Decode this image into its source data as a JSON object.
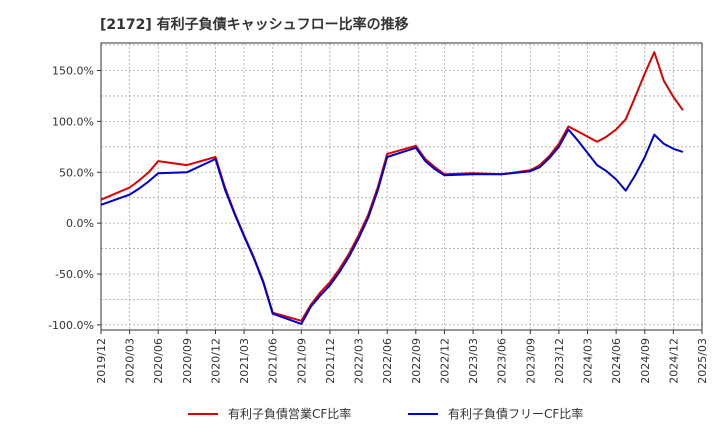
{
  "chart_data": {
    "type": "line",
    "title": "[2172]  有利子負債キャッシュフロー比率の推移",
    "xlabel": "",
    "ylabel": "",
    "x_ticks": [
      "2019/12",
      "2020/03",
      "2020/06",
      "2020/09",
      "2020/12",
      "2021/03",
      "2021/06",
      "2021/09",
      "2021/12",
      "2022/03",
      "2022/06",
      "2022/09",
      "2022/12",
      "2023/03",
      "2023/06",
      "2023/09",
      "2023/12",
      "2024/03",
      "2024/06",
      "2024/09",
      "2024/12",
      "2025/03"
    ],
    "y_ticks": [
      150,
      100,
      50,
      0,
      -50,
      -100
    ],
    "y_tick_labels": [
      "150.0%",
      "100.0%",
      "50.0%",
      "0.0%",
      "-50.0%",
      "-100.0%"
    ],
    "ylim": [
      -105,
      177
    ],
    "grid": true,
    "legend_position": "bottom",
    "series": [
      {
        "name": "有利子負債営業CF比率",
        "color": "#dd0000",
        "points": [
          [
            "2019/12",
            23
          ],
          [
            "2020/03",
            35
          ],
          [
            "2020/04",
            42
          ],
          [
            "2020/05",
            50
          ],
          [
            "2020/06",
            61
          ],
          [
            "2020/09",
            57
          ],
          [
            "2020/12",
            65
          ],
          [
            "2021/01",
            35
          ],
          [
            "2021/02",
            10
          ],
          [
            "2021/03",
            -12
          ],
          [
            "2021/04",
            -33
          ],
          [
            "2021/05",
            -57
          ],
          [
            "2021/06",
            -88
          ],
          [
            "2021/09",
            -96
          ],
          [
            "2021/10",
            -80
          ],
          [
            "2021/11",
            -68
          ],
          [
            "2021/12",
            -58
          ],
          [
            "2022/01",
            -45
          ],
          [
            "2022/02",
            -30
          ],
          [
            "2022/03",
            -12
          ],
          [
            "2022/04",
            8
          ],
          [
            "2022/05",
            35
          ],
          [
            "2022/06",
            68
          ],
          [
            "2022/09",
            76
          ],
          [
            "2022/10",
            63
          ],
          [
            "2022/11",
            55
          ],
          [
            "2022/12",
            48
          ],
          [
            "2023/03",
            49
          ],
          [
            "2023/06",
            48
          ],
          [
            "2023/09",
            52
          ],
          [
            "2023/10",
            57
          ],
          [
            "2023/11",
            66
          ],
          [
            "2023/12",
            78
          ],
          [
            "2024/01",
            95
          ],
          [
            "2024/02",
            90
          ],
          [
            "2024/03",
            85
          ],
          [
            "2024/04",
            80
          ],
          [
            "2024/05",
            85
          ],
          [
            "2024/06",
            92
          ],
          [
            "2024/07",
            102
          ],
          [
            "2024/08",
            124
          ],
          [
            "2024/09",
            147
          ],
          [
            "2024/10",
            168
          ],
          [
            "2024/11",
            140
          ],
          [
            "2024/12",
            124
          ],
          [
            "2025/01",
            111
          ]
        ]
      },
      {
        "name": "有利子負債フリーCF比率",
        "color": "#0000cc",
        "points": [
          [
            "2019/12",
            18
          ],
          [
            "2020/03",
            28
          ],
          [
            "2020/04",
            34
          ],
          [
            "2020/05",
            41
          ],
          [
            "2020/06",
            49
          ],
          [
            "2020/09",
            50
          ],
          [
            "2020/12",
            63
          ],
          [
            "2021/01",
            33
          ],
          [
            "2021/02",
            9
          ],
          [
            "2021/03",
            -13
          ],
          [
            "2021/04",
            -34
          ],
          [
            "2021/05",
            -58
          ],
          [
            "2021/06",
            -89
          ],
          [
            "2021/09",
            -99
          ],
          [
            "2021/10",
            -82
          ],
          [
            "2021/11",
            -71
          ],
          [
            "2021/12",
            -61
          ],
          [
            "2022/01",
            -48
          ],
          [
            "2022/02",
            -33
          ],
          [
            "2022/03",
            -15
          ],
          [
            "2022/04",
            5
          ],
          [
            "2022/05",
            32
          ],
          [
            "2022/06",
            65
          ],
          [
            "2022/09",
            74
          ],
          [
            "2022/10",
            61
          ],
          [
            "2022/11",
            53
          ],
          [
            "2022/12",
            47
          ],
          [
            "2023/03",
            48
          ],
          [
            "2023/06",
            48
          ],
          [
            "2023/09",
            51
          ],
          [
            "2023/10",
            55
          ],
          [
            "2023/11",
            64
          ],
          [
            "2023/12",
            75
          ],
          [
            "2024/01",
            92
          ],
          [
            "2024/02",
            81
          ],
          [
            "2024/03",
            69
          ],
          [
            "2024/04",
            57
          ],
          [
            "2024/05",
            51
          ],
          [
            "2024/06",
            43
          ],
          [
            "2024/07",
            32
          ],
          [
            "2024/08",
            47
          ],
          [
            "2024/09",
            65
          ],
          [
            "2024/10",
            87
          ],
          [
            "2024/11",
            78
          ],
          [
            "2024/12",
            73
          ],
          [
            "2025/01",
            70
          ]
        ]
      }
    ]
  }
}
